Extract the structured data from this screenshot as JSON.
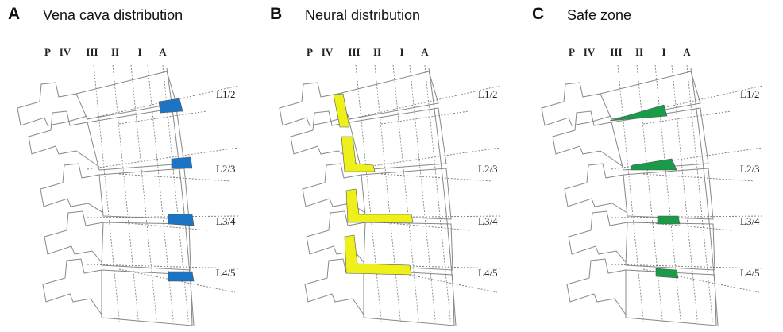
{
  "zone_labels": [
    "P",
    "IV",
    "III",
    "II",
    "I",
    "A"
  ],
  "level_labels": [
    "L1/2",
    "L2/3",
    "L3/4",
    "L4/5"
  ],
  "panels": [
    {
      "letter": "A",
      "title": "Vena cava distribution",
      "highlight": "vena-cava",
      "color": "#1c74c4"
    },
    {
      "letter": "B",
      "title": "Neural distribution",
      "highlight": "neural",
      "color": "#eef01a"
    },
    {
      "letter": "C",
      "title": "Safe zone",
      "highlight": "safe",
      "color": "#1a9b4a"
    }
  ]
}
